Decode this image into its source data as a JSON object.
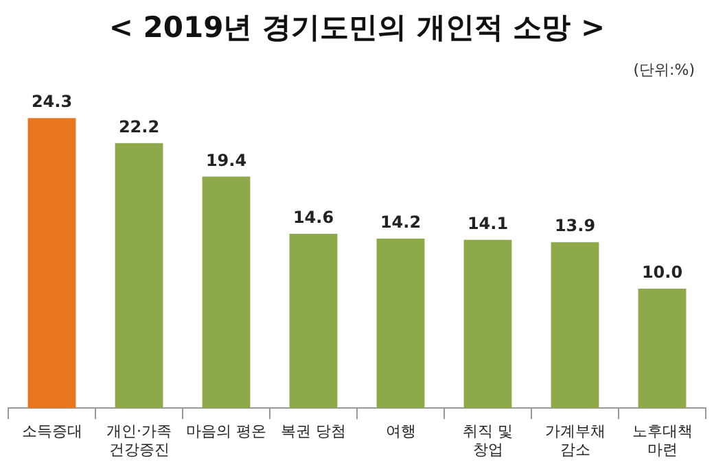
{
  "chart_data": {
    "type": "bar",
    "title": "< 2019년 경기도민의 개인적 소망 >",
    "annotations": [
      "(단위:%)"
    ],
    "categories": [
      "소득증대",
      "개인·가족\n건강증진",
      "마음의 평온",
      "복권 당첨",
      "여행",
      "취직 및\n창업",
      "가계부채\n감소",
      "노후대책\n마련"
    ],
    "values": [
      24.3,
      22.2,
      19.4,
      14.6,
      14.2,
      14.1,
      13.9,
      10.0
    ],
    "colors": [
      "#e8761e",
      "#8ea94a",
      "#8ea94a",
      "#8ea94a",
      "#8ea94a",
      "#8ea94a",
      "#8ea94a",
      "#8ea94a"
    ],
    "value_labels": [
      "24.3",
      "22.2",
      "19.4",
      "14.6",
      "14.2",
      "14.1",
      "13.9",
      "10.0"
    ]
  }
}
